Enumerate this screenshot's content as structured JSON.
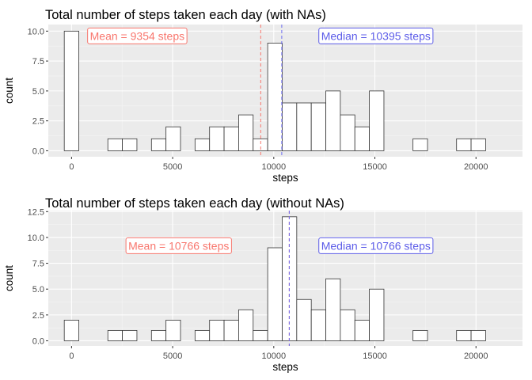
{
  "chart_data": [
    {
      "type": "bar",
      "title": "Total number of steps taken each day (with NAs)",
      "xlabel": "steps",
      "ylabel": "count",
      "xlim": [
        -1150,
        22300
      ],
      "ylim": [
        -0.5,
        10.55
      ],
      "xticks": [
        0,
        5000,
        10000,
        15000,
        20000
      ],
      "xtick_labels": [
        "0",
        "5000",
        "10000",
        "15000",
        "20000"
      ],
      "yticks": [
        0,
        2.5,
        5,
        7.5,
        10
      ],
      "ytick_labels": [
        "0.0",
        "2.5",
        "5.0",
        "7.5",
        "10.0"
      ],
      "grid": true,
      "bin_start": -360,
      "bin_width": 718.5,
      "values": [
        10,
        0,
        0,
        1,
        1,
        0,
        1,
        2,
        0,
        1,
        2,
        2,
        3,
        1,
        9,
        4,
        4,
        4,
        5,
        3,
        2,
        5,
        0,
        0,
        1,
        0,
        0,
        1,
        1
      ],
      "vlines": [
        {
          "value": 9354,
          "color": "#F8766D",
          "style": "dashed"
        },
        {
          "value": 10395,
          "color": "#6C6CF0",
          "style": "dashed"
        }
      ],
      "annotations": [
        {
          "text": "Mean = 9354 steps",
          "x": 3250,
          "y": 9.6,
          "color": "#F8766D"
        },
        {
          "text": "Median = 10395 steps",
          "x": 15050,
          "y": 9.6,
          "color": "#5C5CE8"
        }
      ]
    },
    {
      "type": "bar",
      "title": "Total number of steps taken each day (without NAs)",
      "xlabel": "steps",
      "ylabel": "count",
      "xlim": [
        -1150,
        22300
      ],
      "ylim": [
        -0.5,
        12.6
      ],
      "xticks": [
        0,
        5000,
        10000,
        15000,
        20000
      ],
      "xtick_labels": [
        "0",
        "5000",
        "10000",
        "15000",
        "20000"
      ],
      "yticks": [
        0,
        2.5,
        5,
        7.5,
        10,
        12.5
      ],
      "ytick_labels": [
        "0.0",
        "2.5",
        "5.0",
        "7.5",
        "10.0",
        "12.5"
      ],
      "grid": true,
      "bin_start": -360,
      "bin_width": 718.5,
      "values": [
        2,
        0,
        0,
        1,
        1,
        0,
        1,
        2,
        0,
        1,
        2,
        2,
        3,
        1,
        9,
        12,
        4,
        3,
        6,
        3,
        2,
        5,
        0,
        0,
        1,
        0,
        0,
        1,
        1
      ],
      "vlines": [
        {
          "value": 10766,
          "color": "#F8766D",
          "style": "dashed"
        },
        {
          "value": 10766,
          "color": "#6C6CF0",
          "style": "dashed"
        }
      ],
      "annotations": [
        {
          "text": "Mean = 10766 steps",
          "x": 5300,
          "y": 9.2,
          "color": "#F8766D"
        },
        {
          "text": "Median = 10766 steps",
          "x": 15050,
          "y": 9.2,
          "color": "#5C5CE8"
        }
      ]
    }
  ]
}
